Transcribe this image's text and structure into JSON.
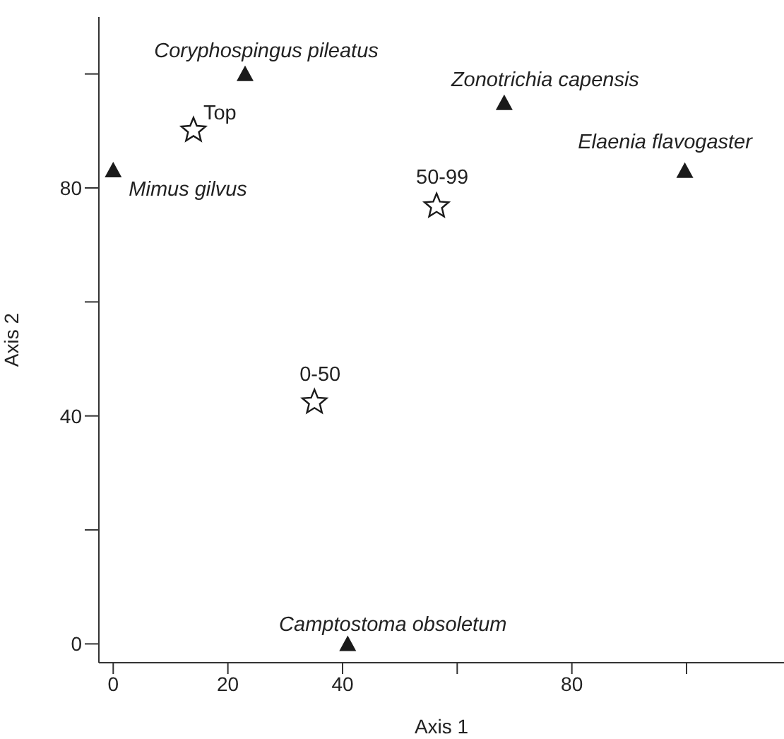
{
  "chart_data": {
    "type": "scatter",
    "xlabel": "Axis 1",
    "ylabel": "Axis 2",
    "xlim": [
      -2.5,
      117
    ],
    "xticks": [
      0,
      20,
      40,
      {
        "value": 60,
        "label": null
      },
      80,
      {
        "value": 100,
        "label": null
      }
    ],
    "ylim": [
      -3.3,
      110
    ],
    "yticks": [
      0,
      {
        "value": 20,
        "label": null
      },
      40,
      {
        "value": 60,
        "label": null
      },
      80,
      {
        "value": 100,
        "label": null
      }
    ],
    "series": [
      {
        "marker": "triangle",
        "color": "#1a1a1a",
        "x": [
          23,
          68.2,
          0,
          99.7,
          40.9
        ],
        "values": [
          100,
          94.9,
          83.1,
          83,
          0
        ],
        "value_labels": [
          "Coryphospingus pileatus",
          "Zonotrichia capensis",
          "Mimus gilvus",
          "Elaenia flavogaster",
          "Camptostoma obsoletum"
        ]
      },
      {
        "marker": "star",
        "color": "#1a1a1a",
        "x": [
          14,
          56.4,
          35.1
        ],
        "values": [
          90.1,
          76.8,
          42.4
        ],
        "value_labels": [
          "Top",
          "50-99",
          "0-50"
        ]
      }
    ]
  }
}
